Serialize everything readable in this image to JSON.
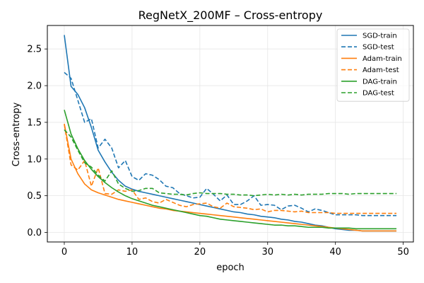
{
  "chart_data": {
    "type": "line",
    "title": "RegNetX_200MF – Cross-entropy",
    "xlabel": "epoch",
    "ylabel": "Cross-entropy",
    "xlim": [
      -2.5,
      51.5
    ],
    "ylim": [
      -0.13,
      2.82
    ],
    "xticks": [
      0,
      10,
      20,
      30,
      40,
      50
    ],
    "yticks": [
      0.0,
      0.5,
      1.0,
      1.5,
      2.0,
      2.5
    ],
    "grid": true,
    "legend_position": "top-right",
    "x": [
      0,
      1,
      2,
      3,
      4,
      5,
      6,
      7,
      8,
      9,
      10,
      11,
      12,
      13,
      14,
      15,
      16,
      17,
      18,
      19,
      20,
      21,
      22,
      23,
      24,
      25,
      26,
      27,
      28,
      29,
      30,
      31,
      32,
      33,
      34,
      35,
      36,
      37,
      38,
      39,
      40,
      41,
      42,
      43,
      44,
      45,
      46,
      47,
      48,
      49
    ],
    "series": [
      {
        "name": "SGD-train",
        "color": "#1f77b4",
        "dash": "solid",
        "values": [
          2.69,
          1.99,
          1.88,
          1.7,
          1.43,
          1.12,
          0.96,
          0.82,
          0.71,
          0.63,
          0.59,
          0.56,
          0.54,
          0.52,
          0.5,
          0.48,
          0.46,
          0.44,
          0.42,
          0.4,
          0.38,
          0.36,
          0.34,
          0.32,
          0.3,
          0.28,
          0.27,
          0.25,
          0.24,
          0.22,
          0.21,
          0.2,
          0.18,
          0.17,
          0.15,
          0.14,
          0.12,
          0.1,
          0.09,
          0.07,
          0.05,
          0.04,
          0.03,
          0.03,
          0.02,
          0.02,
          0.02,
          0.02,
          0.02,
          0.02
        ]
      },
      {
        "name": "SGD-test",
        "color": "#1f77b4",
        "dash": "dashed",
        "values": [
          2.18,
          2.1,
          1.8,
          1.5,
          1.55,
          1.15,
          1.27,
          1.15,
          0.88,
          0.98,
          0.76,
          0.71,
          0.8,
          0.78,
          0.72,
          0.63,
          0.61,
          0.53,
          0.5,
          0.47,
          0.48,
          0.6,
          0.52,
          0.43,
          0.51,
          0.38,
          0.38,
          0.43,
          0.5,
          0.37,
          0.38,
          0.37,
          0.31,
          0.36,
          0.37,
          0.33,
          0.28,
          0.32,
          0.3,
          0.27,
          0.24,
          0.24,
          0.24,
          0.24,
          0.23,
          0.23,
          0.23,
          0.23,
          0.23,
          0.23
        ]
      },
      {
        "name": "Adam-train",
        "color": "#ff7f0e",
        "dash": "solid",
        "values": [
          1.48,
          1.0,
          0.8,
          0.66,
          0.58,
          0.54,
          0.51,
          0.48,
          0.45,
          0.43,
          0.41,
          0.39,
          0.37,
          0.35,
          0.33,
          0.32,
          0.3,
          0.29,
          0.28,
          0.27,
          0.26,
          0.25,
          0.24,
          0.23,
          0.22,
          0.21,
          0.2,
          0.19,
          0.18,
          0.17,
          0.16,
          0.15,
          0.14,
          0.13,
          0.12,
          0.11,
          0.1,
          0.09,
          0.08,
          0.07,
          0.06,
          0.05,
          0.04,
          0.03,
          0.02,
          0.02,
          0.02,
          0.02,
          0.02,
          0.02
        ]
      },
      {
        "name": "Adam-test",
        "color": "#ff7f0e",
        "dash": "dashed",
        "values": [
          1.47,
          0.92,
          0.85,
          0.98,
          0.63,
          0.88,
          0.53,
          0.52,
          0.58,
          0.56,
          0.58,
          0.45,
          0.47,
          0.42,
          0.4,
          0.45,
          0.41,
          0.37,
          0.35,
          0.38,
          0.39,
          0.4,
          0.35,
          0.33,
          0.4,
          0.35,
          0.34,
          0.33,
          0.31,
          0.32,
          0.28,
          0.3,
          0.3,
          0.29,
          0.28,
          0.29,
          0.27,
          0.27,
          0.27,
          0.27,
          0.26,
          0.26,
          0.26,
          0.26,
          0.26,
          0.26,
          0.26,
          0.26,
          0.26,
          0.26
        ]
      },
      {
        "name": "DAG-train",
        "color": "#2ca02c",
        "dash": "solid",
        "values": [
          1.67,
          1.34,
          1.14,
          0.98,
          0.86,
          0.76,
          0.68,
          0.61,
          0.55,
          0.5,
          0.46,
          0.43,
          0.4,
          0.37,
          0.35,
          0.33,
          0.31,
          0.29,
          0.27,
          0.25,
          0.23,
          0.22,
          0.2,
          0.18,
          0.17,
          0.16,
          0.15,
          0.14,
          0.13,
          0.12,
          0.11,
          0.1,
          0.1,
          0.09,
          0.09,
          0.08,
          0.07,
          0.07,
          0.07,
          0.06,
          0.06,
          0.06,
          0.06,
          0.05,
          0.05,
          0.05,
          0.05,
          0.05,
          0.05,
          0.05
        ]
      },
      {
        "name": "DAG-test",
        "color": "#2ca02c",
        "dash": "dashed",
        "values": [
          1.4,
          1.3,
          1.12,
          0.95,
          0.89,
          0.78,
          0.7,
          0.84,
          0.66,
          0.6,
          0.56,
          0.57,
          0.6,
          0.6,
          0.54,
          0.53,
          0.52,
          0.52,
          0.51,
          0.53,
          0.54,
          0.53,
          0.53,
          0.53,
          0.52,
          0.52,
          0.51,
          0.51,
          0.5,
          0.51,
          0.52,
          0.51,
          0.52,
          0.51,
          0.52,
          0.51,
          0.52,
          0.52,
          0.52,
          0.53,
          0.53,
          0.53,
          0.52,
          0.53,
          0.53,
          0.53,
          0.53,
          0.53,
          0.53,
          0.53
        ]
      }
    ]
  }
}
